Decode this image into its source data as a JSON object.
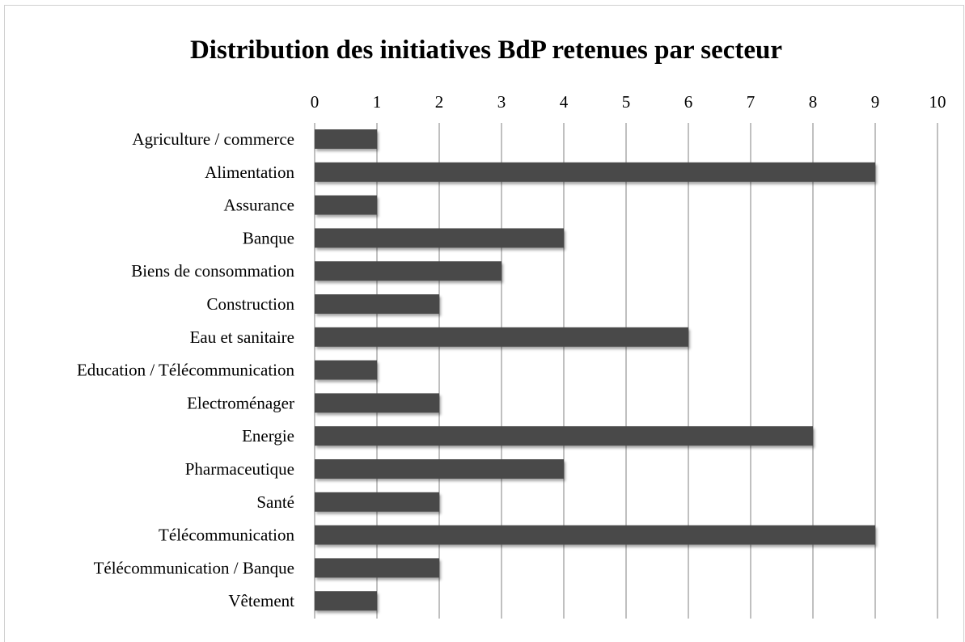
{
  "chart_data": {
    "type": "bar",
    "orientation": "horizontal",
    "title": "Distribution des initiatives BdP retenues par secteur",
    "xlabel": "",
    "ylabel": "",
    "xlim": [
      0,
      10
    ],
    "x_ticks": [
      "0",
      "1",
      "2",
      "3",
      "4",
      "5",
      "6",
      "7",
      "8",
      "9",
      "10"
    ],
    "tick_position": "top",
    "grid": true,
    "legend": "none",
    "categories": [
      "Agriculture / commerce",
      "Alimentation",
      "Assurance",
      "Banque",
      "Biens de consommation",
      "Construction",
      "Eau et sanitaire",
      "Education / Télécommunication",
      "Electroménager",
      "Energie",
      "Pharmaceutique",
      "Santé",
      "Télécommunication",
      "Télécommunication / Banque",
      "Vêtement"
    ],
    "values": [
      1,
      9,
      1,
      4,
      3,
      2,
      6,
      1,
      2,
      8,
      4,
      2,
      9,
      2,
      1
    ],
    "colors": {
      "bar": "#4a4a4a",
      "grid": "#a6a6a6",
      "text": "#000000"
    }
  }
}
